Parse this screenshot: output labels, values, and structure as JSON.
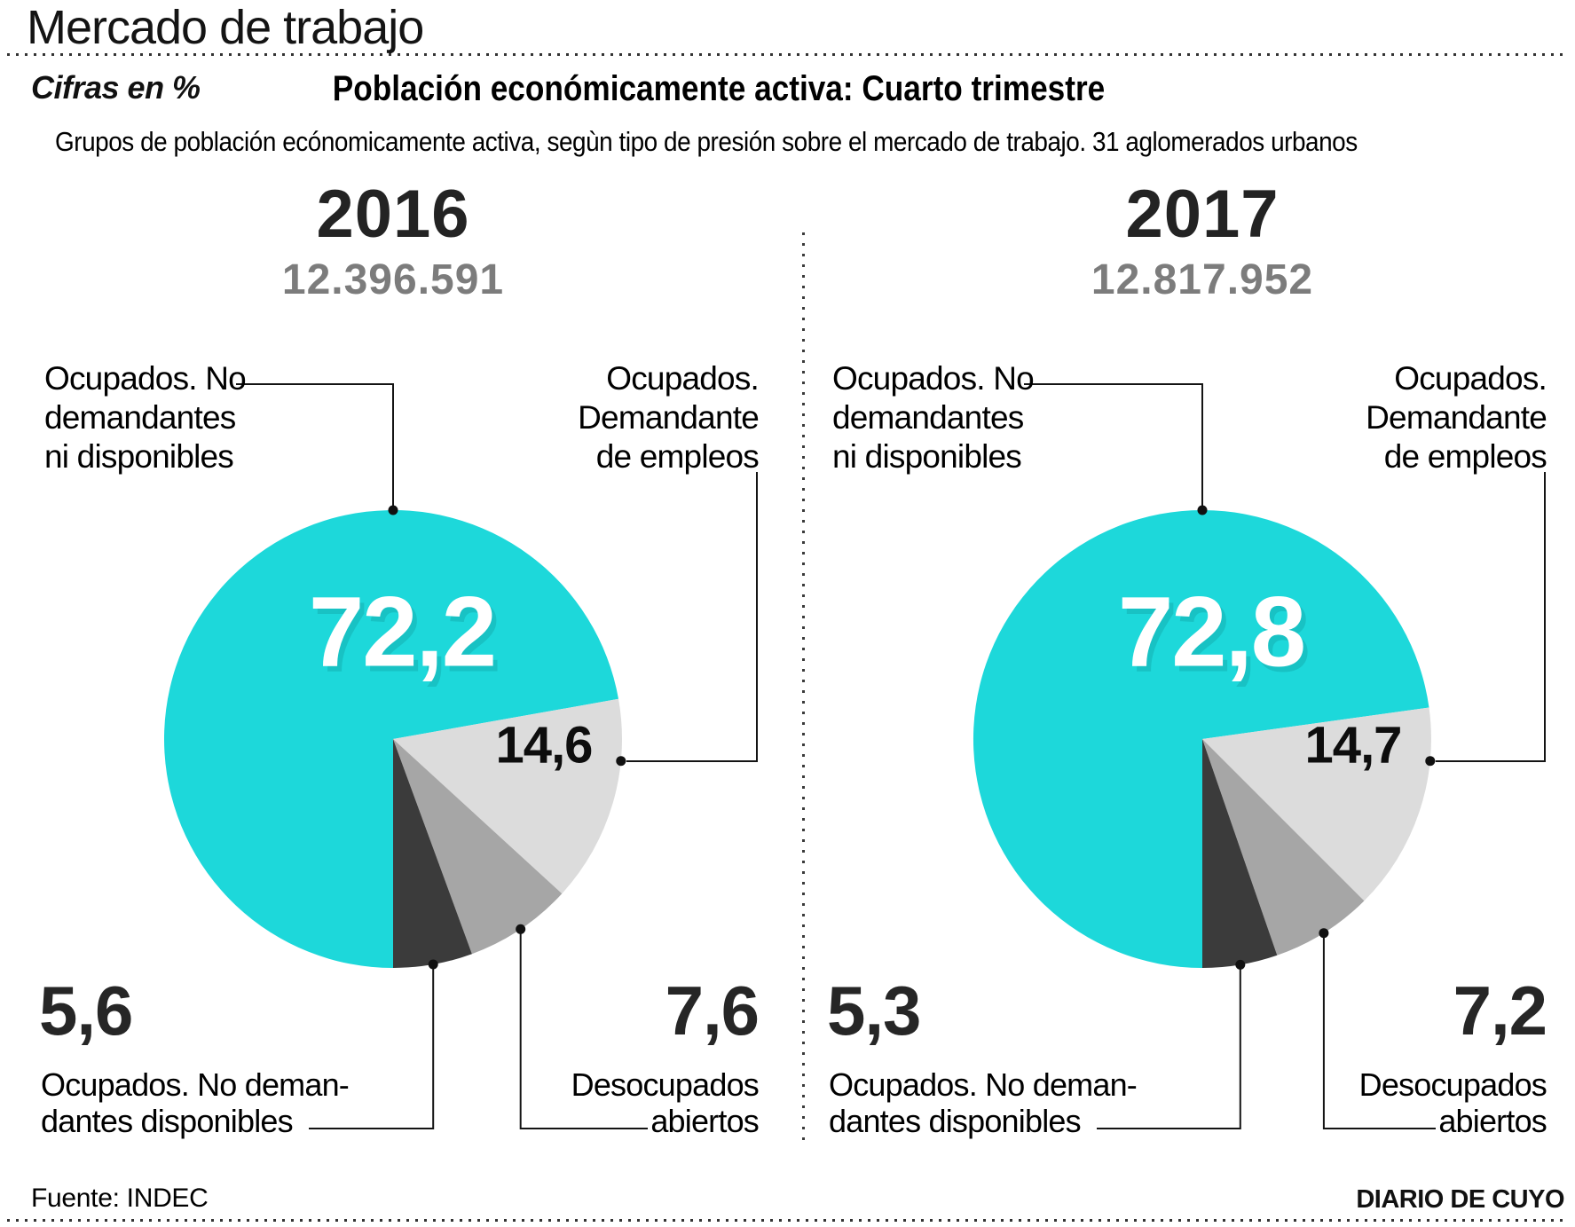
{
  "title": "Mercado de trabajo",
  "units_note": "Cifras en %",
  "chart_title": "Población económicamente activa: Cuarto trimestre",
  "chart_subtitle": "Grupos de población ecónomicamente activa, segùn tipo de presión sobre el mercado de trabajo. 31 aglomerados urbanos",
  "footer": {
    "source": "Fuente: INDEC",
    "credit": "DIARIO DE CUYO"
  },
  "colors": {
    "main": "#1dd8da",
    "light": "#dcdcdc",
    "medium": "#a6a6a6",
    "dark": "#3b3b3b",
    "total_text": "#7c7c7c",
    "line": "#141414"
  },
  "labels": {
    "top_left": [
      "Ocupados. No",
      "demandantes",
      "ni disponibles"
    ],
    "top_right": [
      "Ocupados.",
      "Demandante",
      "de empleos"
    ],
    "bottom_left": [
      "Ocupados. No deman-",
      "dantes disponibles"
    ],
    "bottom_right": [
      "Desocupados",
      "abiertos"
    ]
  },
  "chart_data": [
    {
      "type": "pie",
      "year": "2016",
      "total_population": "12.396.591",
      "legend_position": "callout-labels",
      "slices": [
        {
          "label": "Ocupados. No demandantes ni disponibles",
          "value": 72.2,
          "display": "72,2",
          "color_key": "main"
        },
        {
          "label": "Ocupados. Demandante de empleos",
          "value": 14.6,
          "display": "14,6",
          "color_key": "light"
        },
        {
          "label": "Desocupados abiertos",
          "value": 7.6,
          "display": "7,6",
          "color_key": "medium"
        },
        {
          "label": "Ocupados. No demandantes disponibles",
          "value": 5.6,
          "display": "5,6",
          "color_key": "dark"
        }
      ]
    },
    {
      "type": "pie",
      "year": "2017",
      "total_population": "12.817.952",
      "legend_position": "callout-labels",
      "slices": [
        {
          "label": "Ocupados. No demandantes ni disponibles",
          "value": 72.8,
          "display": "72,8",
          "color_key": "main"
        },
        {
          "label": "Ocupados. Demandante de empleos",
          "value": 14.7,
          "display": "14,7",
          "color_key": "light"
        },
        {
          "label": "Desocupados abiertos",
          "value": 7.2,
          "display": "7,2",
          "color_key": "medium"
        },
        {
          "label": "Ocupados. No demandantes disponibles",
          "value": 5.3,
          "display": "5,3",
          "color_key": "dark"
        }
      ]
    }
  ]
}
